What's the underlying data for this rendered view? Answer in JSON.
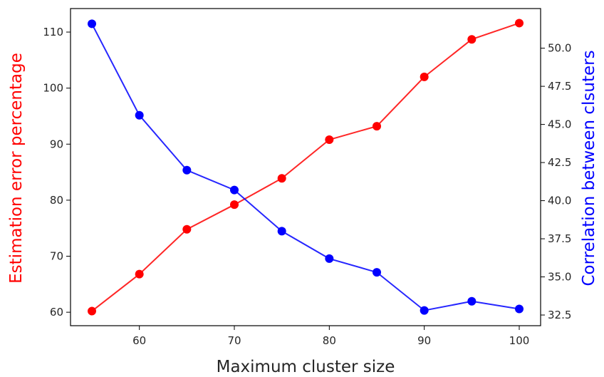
{
  "chart_data": {
    "type": "line",
    "title": "",
    "x": [
      55,
      60,
      65,
      70,
      75,
      80,
      85,
      90,
      95,
      100
    ],
    "xlabel": "Maximum cluster size",
    "xlim": [
      52.75,
      102.25
    ],
    "xticks": [
      60,
      70,
      80,
      90,
      100
    ],
    "series": [
      {
        "axis": "left",
        "color": "#ff0000",
        "marker": "circle",
        "values": [
          60.2,
          66.8,
          74.8,
          79.2,
          83.9,
          90.8,
          93.2,
          102.0,
          108.7,
          111.6
        ]
      },
      {
        "axis": "right",
        "color": "#0000ff",
        "marker": "circle",
        "values": [
          51.6,
          45.6,
          42.0,
          40.7,
          38.0,
          36.2,
          35.3,
          32.8,
          33.4,
          32.9
        ]
      }
    ],
    "y_left": {
      "label": "Estimation error percentage",
      "color": "#ff0000",
      "lim": [
        57.6,
        114.2
      ],
      "ticks": [
        60,
        70,
        80,
        90,
        100,
        110
      ],
      "tick_labels": [
        "60",
        "70",
        "80",
        "90",
        "100",
        "110"
      ]
    },
    "y_right": {
      "label": "Correlation between clsuters",
      "color": "#0000ff",
      "lim": [
        31.8,
        52.6
      ],
      "ticks": [
        32.5,
        35.0,
        37.5,
        40.0,
        42.5,
        45.0,
        47.5,
        50.0
      ],
      "tick_labels": [
        "32.5",
        "35.0",
        "37.5",
        "40.0",
        "42.5",
        "45.0",
        "47.5",
        "50.0"
      ]
    },
    "grid": false,
    "legend": "none"
  }
}
